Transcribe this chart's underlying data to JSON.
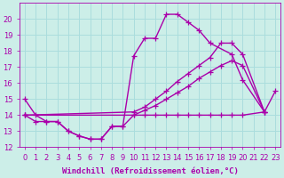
{
  "xlabel": "Windchill (Refroidissement éolien,°C)",
  "bg_color": "#cceee8",
  "grid_color": "#aadddd",
  "line_color": "#aa00aa",
  "xlim": [
    -0.5,
    23.5
  ],
  "ylim": [
    12,
    21
  ],
  "yticks": [
    12,
    13,
    14,
    15,
    16,
    17,
    18,
    19,
    20
  ],
  "xticks": [
    0,
    1,
    2,
    3,
    4,
    5,
    6,
    7,
    8,
    9,
    10,
    11,
    12,
    13,
    14,
    15,
    16,
    17,
    18,
    19,
    20,
    21,
    22,
    23
  ],
  "lines": [
    {
      "x": [
        0,
        1,
        2,
        3,
        4,
        5,
        6,
        7,
        8,
        9,
        10,
        11,
        12,
        13,
        14,
        15,
        16,
        17,
        19,
        20,
        22,
        23
      ],
      "y": [
        15.0,
        14.0,
        13.6,
        13.6,
        13.0,
        12.7,
        12.5,
        12.5,
        13.3,
        13.3,
        17.7,
        18.8,
        18.8,
        20.3,
        20.3,
        19.8,
        19.3,
        18.5,
        17.8,
        16.2,
        14.2,
        15.5
      ]
    },
    {
      "x": [
        0,
        10,
        11,
        12,
        13,
        14,
        15,
        16,
        17,
        18,
        19,
        20,
        22
      ],
      "y": [
        14.0,
        14.2,
        14.5,
        15.0,
        15.5,
        16.1,
        16.6,
        17.1,
        17.6,
        18.5,
        18.5,
        17.8,
        14.2
      ]
    },
    {
      "x": [
        0,
        10,
        11,
        12,
        13,
        14,
        15,
        16,
        17,
        18,
        19,
        20,
        22
      ],
      "y": [
        14.0,
        14.0,
        14.3,
        14.6,
        15.0,
        15.4,
        15.8,
        16.3,
        16.7,
        17.1,
        17.4,
        17.1,
        14.2
      ]
    },
    {
      "x": [
        0,
        1,
        2,
        3,
        4,
        5,
        6,
        7,
        8,
        9,
        10,
        11,
        12,
        13,
        14,
        15,
        16,
        17,
        18,
        19,
        20,
        22
      ],
      "y": [
        14.0,
        13.6,
        13.6,
        13.6,
        13.0,
        12.7,
        12.5,
        12.5,
        13.3,
        13.3,
        14.0,
        14.0,
        14.0,
        14.0,
        14.0,
        14.0,
        14.0,
        14.0,
        14.0,
        14.0,
        14.0,
        14.2
      ]
    }
  ],
  "marker": "+",
  "markersize": 4,
  "linewidth": 1.0,
  "xlabel_fontsize": 6.5,
  "tick_fontsize": 6.0
}
